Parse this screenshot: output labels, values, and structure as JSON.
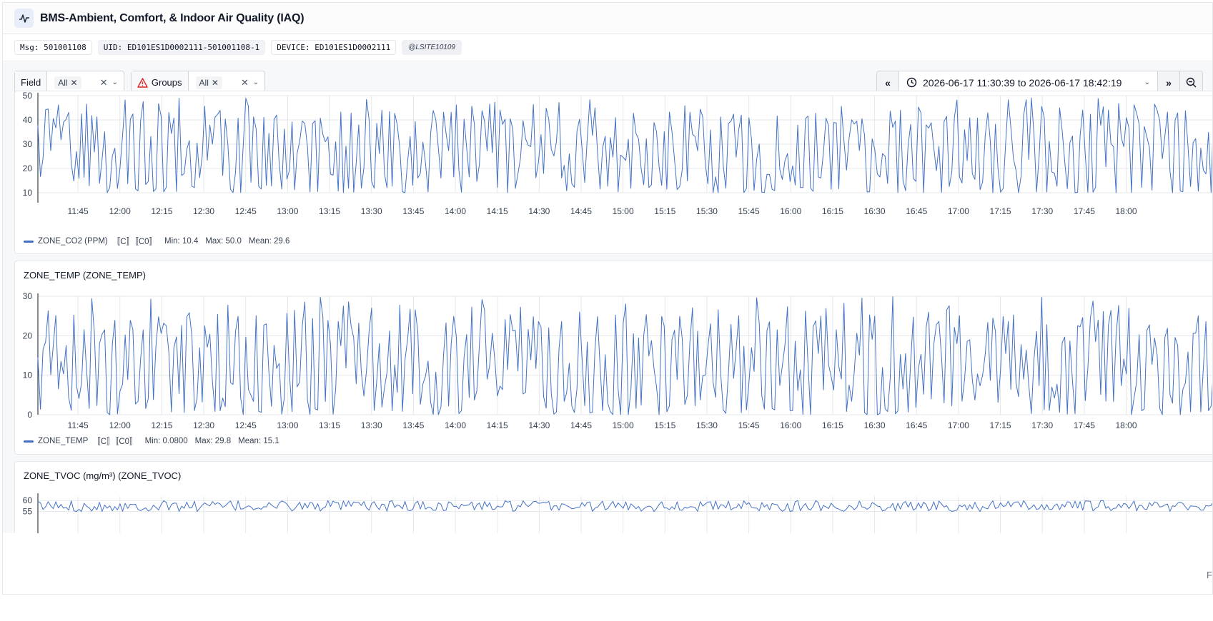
{
  "app": {
    "title": "BMS-Ambient, Comfort, & Indoor Air Quality (IAQ)",
    "icon": "pulse-icon"
  },
  "meta": {
    "msg": "Msg: 501001108",
    "uid": "UID: ED101ES1D0002111-501001108-1",
    "device": "DEVICE: ED101ES1D0002111",
    "site": "@LSITE10109"
  },
  "filters": {
    "field": {
      "label": "Field",
      "value": "All"
    },
    "groups": {
      "label": "Groups",
      "value": "All"
    }
  },
  "time_range": {
    "text": "2026-06-17 11:30:39 to 2026-06-17 18:42:19",
    "prev_label": "«",
    "next_label": "»",
    "zoom_icon": "zoom-out-icon"
  },
  "colors": {
    "series": "#4472c4",
    "grid": "#e5e7eb",
    "accent": "#e8edfa",
    "warn": "#dc2626"
  },
  "footer_char": "F",
  "chart_data": [
    {
      "type": "line",
      "title": "",
      "series_name": "ZONE_CO2 (PPM)",
      "legend": {
        "name": "ZONE_CO2 (PPM)",
        "tags": "〚C〛〚C0〛",
        "min": "Min: 10.4",
        "max": "Max: 50.0",
        "mean": "Mean: 29.6"
      },
      "ylim": [
        10,
        50
      ],
      "yticks": [
        10,
        20,
        30,
        40,
        50
      ],
      "xticks": [
        "11:45",
        "12:00",
        "12:15",
        "12:30",
        "12:45",
        "13:00",
        "13:15",
        "13:30",
        "13:45",
        "14:00",
        "14:15",
        "14:30",
        "14:45",
        "15:00",
        "15:15",
        "15:30",
        "15:45",
        "16:00",
        "16:15",
        "16:30",
        "16:45",
        "17:00",
        "17:15",
        "17:30",
        "17:45",
        "18:00"
      ],
      "x_range": [
        "11:30:39",
        "18:42:19"
      ],
      "stats": {
        "min": 10.4,
        "max": 50.0,
        "mean": 29.6
      },
      "grid": true
    },
    {
      "type": "line",
      "title": "ZONE_TEMP (ZONE_TEMP)",
      "series_name": "ZONE_TEMP",
      "legend": {
        "name": "ZONE_TEMP",
        "tags": "〚C〛〚C0〛",
        "min": "Min: 0.0800",
        "max": "Max: 29.8",
        "mean": "Mean: 15.1"
      },
      "ylim": [
        0,
        30
      ],
      "yticks": [
        0,
        10,
        20,
        30
      ],
      "xticks": [
        "11:45",
        "12:00",
        "12:15",
        "12:30",
        "12:45",
        "13:00",
        "13:15",
        "13:30",
        "13:45",
        "14:00",
        "14:15",
        "14:30",
        "14:45",
        "15:00",
        "15:15",
        "15:30",
        "15:45",
        "16:00",
        "16:15",
        "16:30",
        "16:45",
        "17:00",
        "17:15",
        "17:30",
        "17:45",
        "18:00"
      ],
      "x_range": [
        "11:30:39",
        "18:42:19"
      ],
      "stats": {
        "min": 0.08,
        "max": 29.8,
        "mean": 15.1
      },
      "grid": true
    },
    {
      "type": "line",
      "title": "ZONE_TVOC (mg/m³) (ZONE_TVOC)",
      "series_name": "ZONE_TVOC (mg/m³)",
      "ylim": [
        55,
        60
      ],
      "yticks": [
        55,
        60
      ],
      "x_range": [
        "11:30:39",
        "18:42:19"
      ],
      "grid": true
    }
  ]
}
